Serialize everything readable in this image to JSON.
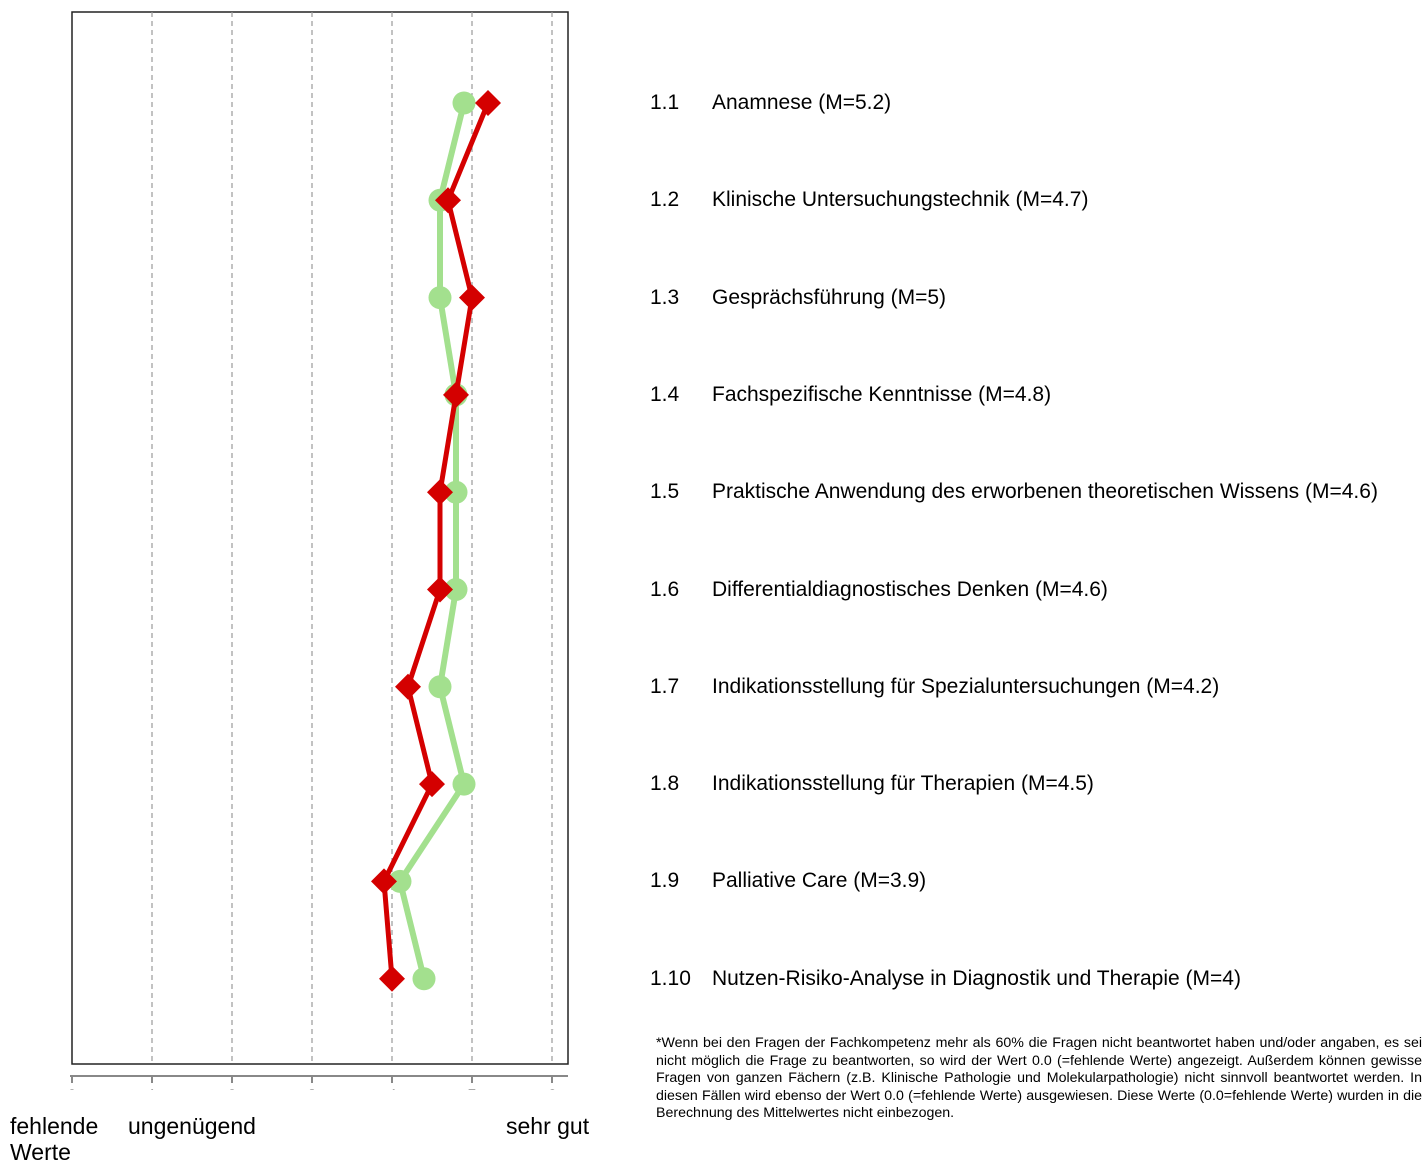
{
  "chart_data": {
    "type": "line",
    "orientation": "horizontal",
    "xlim": [
      0,
      6.2
    ],
    "x_ticks": [
      "0",
      "1",
      "2",
      "3",
      "4",
      "5",
      "6"
    ],
    "grid": "vertical dashed",
    "scale_labels": {
      "low": "fehlende Werte",
      "mid": "ungenügend",
      "high": "sehr gut"
    },
    "categories": [
      "1.1",
      "1.2",
      "1.3",
      "1.4",
      "1.5",
      "1.6",
      "1.7",
      "1.8",
      "1.9",
      "1.10"
    ],
    "series": [
      {
        "marker": "circle",
        "color": "#a3e08e",
        "values": [
          4.9,
          4.6,
          4.6,
          4.8,
          4.8,
          4.8,
          4.6,
          4.9,
          4.1,
          4.4
        ]
      },
      {
        "marker": "diamond",
        "color": "#d40000",
        "values": [
          5.2,
          4.7,
          5.0,
          4.8,
          4.6,
          4.6,
          4.2,
          4.5,
          3.9,
          4.0
        ]
      }
    ]
  },
  "items": [
    {
      "num": "1.1",
      "text": "Anamnese (M=5.2)"
    },
    {
      "num": "1.2",
      "text": "Klinische Untersuchungstechnik (M=4.7)"
    },
    {
      "num": "1.3",
      "text": "Gesprächsführung (M=5)"
    },
    {
      "num": "1.4",
      "text": "Fachspezifische Kenntnisse (M=4.8)"
    },
    {
      "num": "1.5",
      "text": "Praktische Anwendung des erworbenen theoretischen Wissens (M=4.6)"
    },
    {
      "num": "1.6",
      "text": "Differentialdiagnostisches Denken (M=4.6)"
    },
    {
      "num": "1.7",
      "text": "Indikationsstellung für Spezialuntersuchungen (M=4.2)"
    },
    {
      "num": "1.8",
      "text": "Indikationsstellung für Therapien (M=4.5)"
    },
    {
      "num": "1.9",
      "text": "Palliative Care (M=3.9)"
    },
    {
      "num": "1.10",
      "text": "Nutzen-Risiko-Analyse in Diagnostik und Therapie (M=4)"
    }
  ],
  "footnote": "*Wenn bei den Fragen der Fachkompetenz mehr als 60% die Fragen nicht beantwortet haben und/oder angaben, es sei nicht möglich die Frage zu beantworten, so wird der Wert 0.0 (=fehlende Werte) angezeigt. Außerdem können gewisse Fragen von ganzen Fächern (z.B. Klinische Pathologie und Molekularpathologie) nicht sinnvoll beantwortet werden. In diesen Fällen wird ebenso der Wert 0.0 (=fehlende Werte) ausgewiesen. Diese Werte (0.0=fehlende Werte) wurden in die Berechnung des Mittelwertes nicht einbezogen."
}
